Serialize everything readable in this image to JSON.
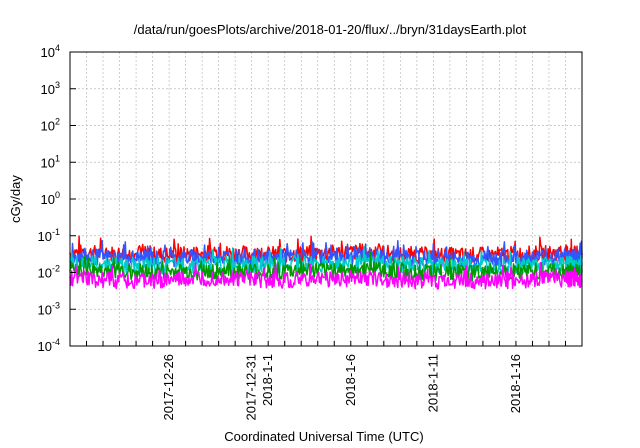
{
  "chart_data": {
    "type": "line",
    "title": "/data/run/goesPlots/archive/2018-01-20/flux/../bryn/31daysEarth.plot",
    "xlabel": "Coordinated Universal Time (UTC)",
    "ylabel": "cGy/day",
    "yscale": "log",
    "ylim": [
      0.0001,
      10000
    ],
    "xlim": [
      "2017-12-20",
      "2018-01-20"
    ],
    "grid": true,
    "legend": "none",
    "y_ticks": [
      {
        "base": "10",
        "exp": "-4",
        "value": 0.0001
      },
      {
        "base": "10",
        "exp": "-3",
        "value": 0.001
      },
      {
        "base": "10",
        "exp": "-2",
        "value": 0.01
      },
      {
        "base": "10",
        "exp": "-1",
        "value": 0.1
      },
      {
        "base": "10",
        "exp": "0",
        "value": 1
      },
      {
        "base": "10",
        "exp": "1",
        "value": 10
      },
      {
        "base": "10",
        "exp": "2",
        "value": 100
      },
      {
        "base": "10",
        "exp": "3",
        "value": 1000
      },
      {
        "base": "10",
        "exp": "4",
        "value": 10000
      }
    ],
    "x_ticks": [
      {
        "label": "2017-12-26",
        "date": "2017-12-26"
      },
      {
        "label": "2017-12-31",
        "date": "2017-12-31"
      },
      {
        "label": "2018-1-1",
        "date": "2018-01-01"
      },
      {
        "label": "2018-1-6",
        "date": "2018-01-06"
      },
      {
        "label": "2018-1-11",
        "date": "2018-01-11"
      },
      {
        "label": "2018-1-16",
        "date": "2018-01-16"
      }
    ],
    "series": [
      {
        "color": "#ff0000",
        "x": [
          "2017-12-20",
          "2017-12-23",
          "2017-12-26",
          "2017-12-29",
          "2018-01-01",
          "2018-01-04",
          "2018-01-07",
          "2018-01-10",
          "2018-01-13",
          "2018-01-16",
          "2018-01-19",
          "2018-01-20"
        ],
        "values": [
          0.035,
          0.032,
          0.03,
          0.034,
          0.031,
          0.033,
          0.036,
          0.03,
          0.029,
          0.031,
          0.034,
          0.03
        ]
      },
      {
        "color": "#3355ff",
        "x": [
          "2017-12-20",
          "2017-12-23",
          "2017-12-26",
          "2017-12-29",
          "2018-01-01",
          "2018-01-04",
          "2018-01-07",
          "2018-01-10",
          "2018-01-13",
          "2018-01-16",
          "2018-01-19",
          "2018-01-20"
        ],
        "values": [
          0.028,
          0.025,
          0.024,
          0.027,
          0.025,
          0.026,
          0.029,
          0.024,
          0.023,
          0.025,
          0.027,
          0.024
        ]
      },
      {
        "color": "#00cccc",
        "x": [
          "2017-12-20",
          "2017-12-23",
          "2017-12-26",
          "2017-12-29",
          "2018-01-01",
          "2018-01-04",
          "2018-01-07",
          "2018-01-10",
          "2018-01-13",
          "2018-01-16",
          "2018-01-19",
          "2018-01-20"
        ],
        "values": [
          0.018,
          0.016,
          0.015,
          0.017,
          0.016,
          0.017,
          0.018,
          0.015,
          0.015,
          0.016,
          0.017,
          0.015
        ]
      },
      {
        "color": "#009900",
        "x": [
          "2017-12-20",
          "2017-12-23",
          "2017-12-26",
          "2017-12-29",
          "2018-01-01",
          "2018-01-04",
          "2018-01-07",
          "2018-01-10",
          "2018-01-13",
          "2018-01-16",
          "2018-01-19",
          "2018-01-20"
        ],
        "values": [
          0.012,
          0.011,
          0.01,
          0.011,
          0.01,
          0.011,
          0.012,
          0.01,
          0.01,
          0.011,
          0.011,
          0.01
        ]
      },
      {
        "color": "#ff00ff",
        "x": [
          "2017-12-20",
          "2017-12-23",
          "2017-12-26",
          "2017-12-29",
          "2018-01-01",
          "2018-01-04",
          "2018-01-07",
          "2018-01-10",
          "2018-01-13",
          "2018-01-16",
          "2018-01-19",
          "2018-01-20"
        ],
        "values": [
          0.007,
          0.006,
          0.006,
          0.007,
          0.006,
          0.0065,
          0.007,
          0.006,
          0.0058,
          0.0062,
          0.0068,
          0.006
        ]
      }
    ]
  }
}
